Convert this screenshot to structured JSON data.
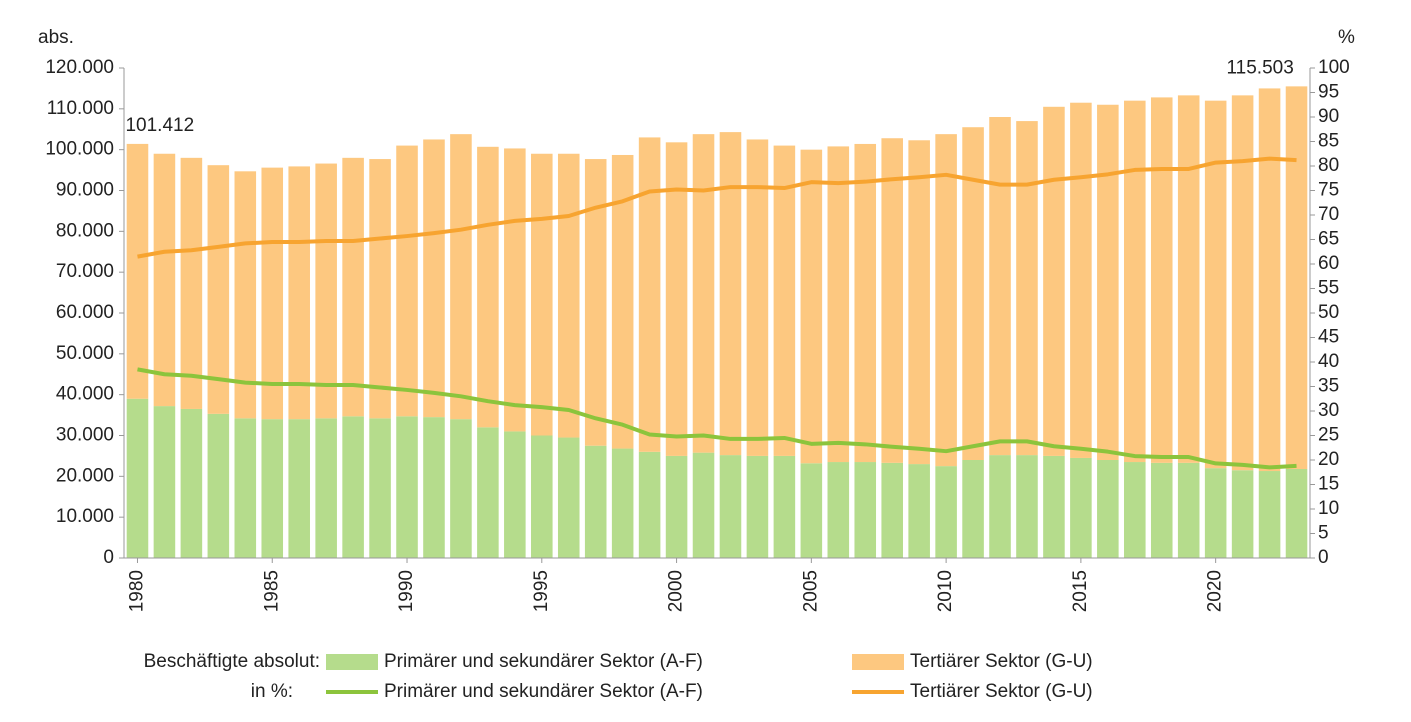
{
  "chart_data": {
    "type": "stacked_bar_line",
    "ylabel": "abs.",
    "y2label": "%",
    "x": [
      1980,
      1981,
      1982,
      1983,
      1984,
      1985,
      1986,
      1987,
      1988,
      1989,
      1990,
      1991,
      1992,
      1993,
      1994,
      1995,
      1996,
      1997,
      1998,
      1999,
      2000,
      2001,
      2002,
      2003,
      2004,
      2005,
      2006,
      2007,
      2008,
      2009,
      2010,
      2011,
      2012,
      2013,
      2014,
      2015,
      2016,
      2017,
      2018,
      2019,
      2020,
      2021,
      2022,
      2023
    ],
    "xticks": [
      1980,
      1985,
      1990,
      1995,
      2000,
      2005,
      2010,
      2015,
      2020
    ],
    "ylim": [
      0,
      120000
    ],
    "yticks": [
      0,
      {
        "value": 10000,
        "label": "10.000"
      },
      {
        "value": 20000,
        "label": "20.000"
      },
      {
        "value": 30000,
        "label": "30.000"
      },
      {
        "value": 40000,
        "label": "40.000"
      },
      {
        "value": 50000,
        "label": "50.000"
      },
      {
        "value": 60000,
        "label": "60.000"
      },
      {
        "value": 70000,
        "label": "70.000"
      },
      {
        "value": 80000,
        "label": "80.000"
      },
      {
        "value": 90000,
        "label": "90.000"
      },
      {
        "value": 100000,
        "label": "100.000"
      },
      {
        "value": 110000,
        "label": "110.000"
      },
      {
        "value": 120000,
        "label": "120.000"
      }
    ],
    "y2lim": [
      0,
      100
    ],
    "y2ticks": [
      0,
      5,
      10,
      15,
      20,
      25,
      30,
      35,
      40,
      45,
      50,
      55,
      60,
      65,
      70,
      75,
      80,
      85,
      90,
      95,
      100
    ],
    "legend_labels": [
      "Beschäftigte absolut:",
      "in %:"
    ],
    "series": [
      {
        "name": "Primärer und sekundärer Sektor (A-F)",
        "kind": "bar",
        "color": "#b5dc8c",
        "values": [
          39000,
          37200,
          36500,
          35300,
          34200,
          34000,
          34000,
          34200,
          34700,
          34200,
          34700,
          34500,
          34000,
          32000,
          31000,
          30000,
          29500,
          27500,
          26800,
          26000,
          25000,
          25800,
          25200,
          25000,
          25000,
          23200,
          23500,
          23500,
          23300,
          23000,
          22500,
          24000,
          25200,
          25200,
          25000,
          24500,
          24000,
          23500,
          23300,
          23300,
          22000,
          21500,
          21300,
          21800
        ]
      },
      {
        "name": "Tertiärer Sektor (G-U)",
        "kind": "bar",
        "color": "#fdc880",
        "values": [
          62412,
          61800,
          61500,
          60900,
          60500,
          61600,
          61900,
          62400,
          63300,
          63500,
          66300,
          68000,
          69800,
          68700,
          69300,
          69000,
          69500,
          70200,
          71900,
          77000,
          76800,
          78000,
          79100,
          77500,
          76000,
          76800,
          77300,
          77900,
          79500,
          79300,
          81300,
          81500,
          82800,
          81800,
          85500,
          87000,
          87000,
          88500,
          89500,
          90000,
          90000,
          91800,
          93700,
          93703
        ]
      },
      {
        "name": "Primärer und sekundärer Sektor (A-F)",
        "kind": "line",
        "axis": "y2",
        "color": "#8cc43c",
        "values": [
          38.5,
          37.5,
          37.2,
          36.5,
          35.8,
          35.5,
          35.5,
          35.3,
          35.3,
          34.8,
          34.3,
          33.7,
          33,
          32,
          31.2,
          30.8,
          30.2,
          28.5,
          27.2,
          25.2,
          24.8,
          25,
          24.3,
          24.3,
          24.5,
          23.3,
          23.5,
          23.2,
          22.7,
          22.3,
          21.8,
          22.8,
          23.8,
          23.8,
          22.8,
          22.3,
          21.7,
          20.8,
          20.6,
          20.6,
          19.3,
          19,
          18.5,
          18.8
        ]
      },
      {
        "name": "Tertiärer Sektor (G-U)",
        "kind": "line",
        "axis": "y2",
        "color": "#f7a430",
        "values": [
          61.5,
          62.5,
          62.8,
          63.5,
          64.2,
          64.5,
          64.5,
          64.7,
          64.7,
          65.2,
          65.7,
          66.3,
          67,
          68,
          68.8,
          69.2,
          69.8,
          71.5,
          72.8,
          74.8,
          75.2,
          75,
          75.7,
          75.7,
          75.5,
          76.7,
          76.5,
          76.8,
          77.3,
          77.7,
          78.2,
          77.2,
          76.2,
          76.2,
          77.2,
          77.7,
          78.3,
          79.2,
          79.4,
          79.4,
          80.7,
          81,
          81.5,
          81.2
        ]
      }
    ],
    "annotations": [
      {
        "x": 1980,
        "label": "101.412"
      },
      {
        "x": 2023,
        "label": "115.503"
      }
    ]
  }
}
